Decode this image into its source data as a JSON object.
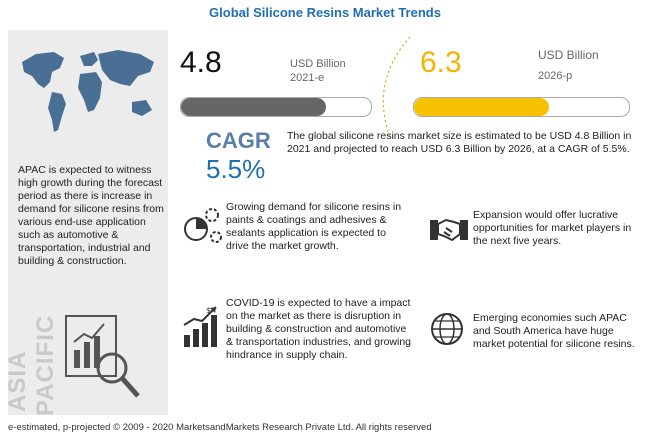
{
  "title": "Global Silicone Resins Market Trends",
  "left_panel": {
    "map_icon": "world-map-icon",
    "text": "APAC is expected to witness high growth during the forecast period as there is increase in demand for silicone resins from various end-use application such as automotive & transportation, industrial and building & construction.",
    "region_word_1": "ASIA",
    "region_word_2": "PACIFIC",
    "region_icon": "chart-magnifier-icon"
  },
  "stat_2021": {
    "value": "4.8",
    "unit": "USD Billion",
    "year": "2021-e",
    "bar_color": "#666666"
  },
  "stat_2026": {
    "value": "6.3",
    "unit": "USD Billion",
    "year": "2026-p",
    "bar_color": "#f6c200"
  },
  "cagr": {
    "label": "CAGR",
    "value": "5.5%"
  },
  "summary": "The global silicone resins market size is estimated to be USD 4.8 Billion in 2021 and projected to reach USD 6.3 Billion by 2026, at a CAGR of 5.5%.",
  "cards": [
    {
      "icon": "gears-pie-chart-icon",
      "text": "Growing demand for silicone resins in paints & coatings and adhesives & sealants application is expected to drive the market growth."
    },
    {
      "icon": "handshake-icon",
      "text": "Expansion would offer lucrative opportunities for market players in the next five years."
    },
    {
      "icon": "bar-chart-growth-icon",
      "text": "COVID-19 is expected to have a impact on the market as there is  disruption in building & construction and automotive & transportation industries, and growing hindrance in supply chain."
    },
    {
      "icon": "globe-icon",
      "text": "Emerging economies such APAC and South America have huge market potential for silicone resins."
    }
  ],
  "footer": "e-estimated, p-projected © 2009 - 2020 MarketsandMarkets Research Private Ltd. All rights reserved",
  "colors": {
    "title_blue": "#1f6fb2",
    "yellow": "#f6c200",
    "grey_bar": "#666666"
  }
}
